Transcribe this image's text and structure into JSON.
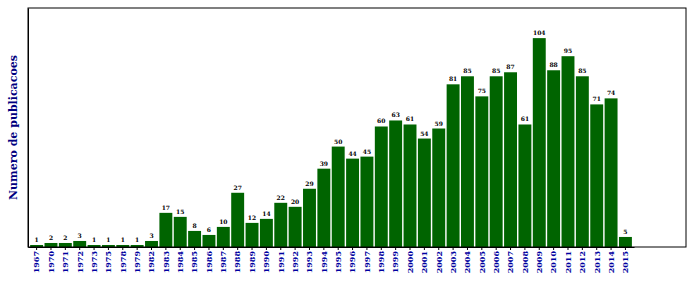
{
  "chart_data": {
    "type": "bar",
    "y_label": "Numero de publicacoes",
    "categories": [
      "1967",
      "1970",
      "1971",
      "1972",
      "1973",
      "1975",
      "1978",
      "1979",
      "1982",
      "1983",
      "1984",
      "1985",
      "1986",
      "1987",
      "1988",
      "1989",
      "1990",
      "1991",
      "1992",
      "1993",
      "1994",
      "1995",
      "1996",
      "1997",
      "1998",
      "1999",
      "2000",
      "2001",
      "2002",
      "2003",
      "2004",
      "2005",
      "2006",
      "2007",
      "2008",
      "2009",
      "2010",
      "2011",
      "2012",
      "2013",
      "2014",
      "2015"
    ],
    "values": [
      1,
      2,
      2,
      3,
      1,
      1,
      1,
      1,
      3,
      17,
      15,
      8,
      6,
      10,
      27,
      12,
      14,
      22,
      20,
      29,
      39,
      50,
      44,
      45,
      60,
      63,
      61,
      54,
      59,
      81,
      85,
      75,
      85,
      87,
      61,
      104,
      88,
      95,
      85,
      71,
      74,
      5
    ],
    "color": "#006400",
    "ylim": [
      0,
      119
    ],
    "grid": false,
    "data_labels": true,
    "tick_labels": "x"
  }
}
